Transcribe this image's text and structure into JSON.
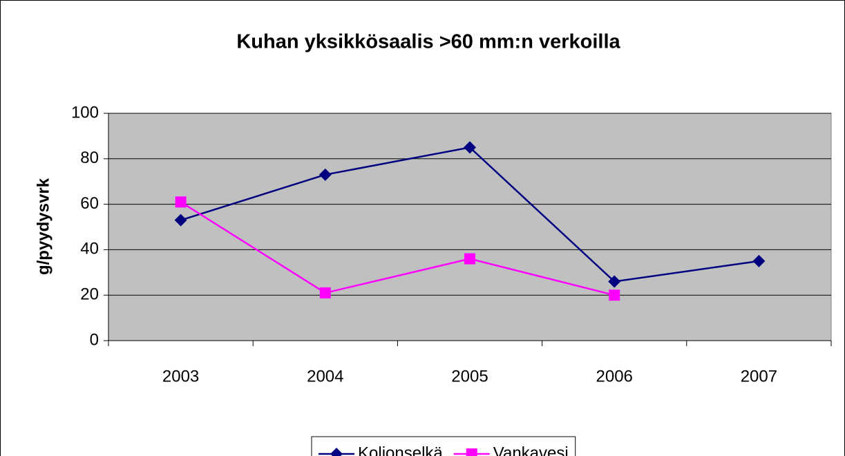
{
  "chart_data": {
    "type": "line",
    "title": "Kuhan yksikkösaalis >60 mm:n verkoilla",
    "y_label": "g/pyydysvrk",
    "categories": [
      "2003",
      "2004",
      "2005",
      "2006",
      "2007"
    ],
    "series": [
      {
        "name": "Koljonselkä",
        "color": "#000080",
        "marker": "diamond",
        "values": [
          53,
          73,
          85,
          26,
          35
        ]
      },
      {
        "name": "Vankavesi",
        "color": "#ff00ff",
        "marker": "square",
        "values": [
          61,
          21,
          36,
          20,
          null
        ]
      }
    ],
    "ylim": [
      0,
      100
    ],
    "yticks": [
      0,
      20,
      40,
      60,
      80,
      100
    ],
    "grid": true,
    "legend": "bottom"
  }
}
